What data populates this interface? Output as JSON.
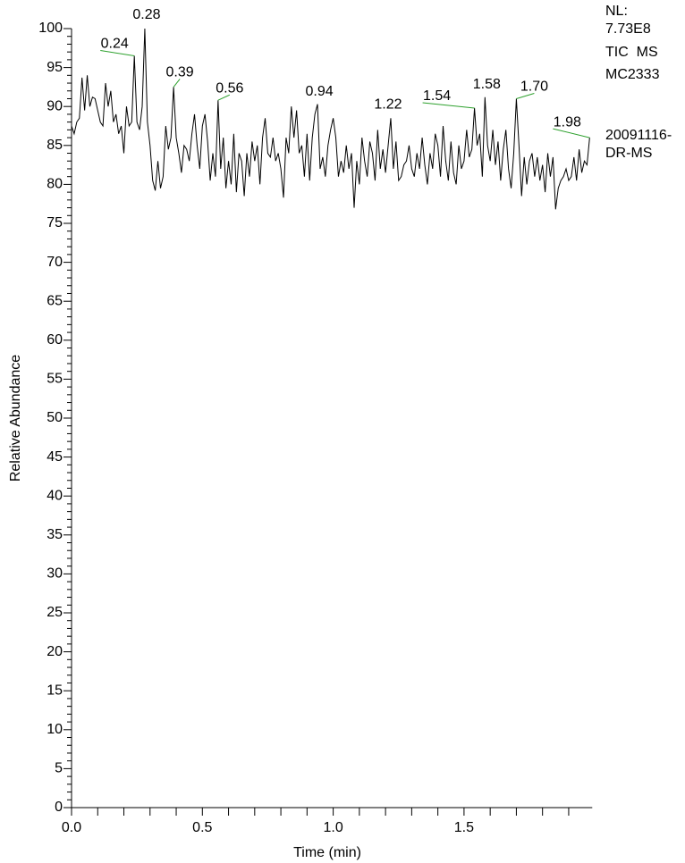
{
  "chart_data": {
    "type": "line",
    "xlabel": "Time (min)",
    "ylabel": "Relative Abundance",
    "annotations": [
      "NL:",
      "7.73E8",
      "TIC  MS",
      "MC2333",
      "20091116-",
      "DR-MS"
    ],
    "xlim": [
      0,
      1.99
    ],
    "ylim": [
      0,
      100
    ],
    "xticks": [
      {
        "value": 0,
        "label": "0.0"
      },
      0.5,
      {
        "value": 1,
        "label": "1.0"
      },
      1.5
    ],
    "yticks": [
      0,
      5,
      10,
      15,
      20,
      25,
      30,
      35,
      40,
      45,
      50,
      55,
      60,
      65,
      70,
      75,
      80,
      85,
      90,
      95,
      100
    ],
    "minor_per_major": 5,
    "color": "#000000",
    "peak_line_color": "#2ca02c",
    "x": [
      0.0,
      0.01,
      0.02,
      0.03,
      0.04,
      0.05,
      0.06,
      0.07,
      0.08,
      0.09,
      0.1,
      0.11,
      0.12,
      0.13,
      0.14,
      0.15,
      0.16,
      0.17,
      0.18,
      0.19,
      0.2,
      0.21,
      0.22,
      0.23,
      0.24,
      0.25,
      0.26,
      0.27,
      0.28,
      0.29,
      0.3,
      0.31,
      0.32,
      0.33,
      0.34,
      0.35,
      0.36,
      0.37,
      0.38,
      0.39,
      0.4,
      0.41,
      0.42,
      0.43,
      0.44,
      0.45,
      0.46,
      0.47,
      0.48,
      0.49,
      0.5,
      0.51,
      0.52,
      0.53,
      0.54,
      0.55,
      0.56,
      0.57,
      0.58,
      0.59,
      0.6,
      0.61,
      0.62,
      0.63,
      0.64,
      0.65,
      0.66,
      0.67,
      0.68,
      0.69,
      0.7,
      0.71,
      0.72,
      0.73,
      0.74,
      0.75,
      0.76,
      0.77,
      0.78,
      0.79,
      0.8,
      0.81,
      0.82,
      0.83,
      0.84,
      0.85,
      0.86,
      0.87,
      0.88,
      0.89,
      0.9,
      0.91,
      0.92,
      0.93,
      0.94,
      0.95,
      0.96,
      0.97,
      0.98,
      0.99,
      1.0,
      1.01,
      1.02,
      1.03,
      1.04,
      1.05,
      1.06,
      1.07,
      1.08,
      1.09,
      1.1,
      1.11,
      1.12,
      1.13,
      1.14,
      1.15,
      1.16,
      1.17,
      1.18,
      1.19,
      1.2,
      1.21,
      1.22,
      1.23,
      1.24,
      1.25,
      1.26,
      1.27,
      1.28,
      1.29,
      1.3,
      1.31,
      1.32,
      1.33,
      1.34,
      1.35,
      1.36,
      1.37,
      1.38,
      1.39,
      1.4,
      1.41,
      1.42,
      1.43,
      1.44,
      1.45,
      1.46,
      1.47,
      1.48,
      1.49,
      1.5,
      1.51,
      1.52,
      1.53,
      1.54,
      1.55,
      1.56,
      1.57,
      1.58,
      1.59,
      1.6,
      1.61,
      1.62,
      1.63,
      1.64,
      1.65,
      1.66,
      1.67,
      1.68,
      1.69,
      1.7,
      1.71,
      1.72,
      1.73,
      1.74,
      1.75,
      1.76,
      1.77,
      1.78,
      1.79,
      1.8,
      1.81,
      1.82,
      1.83,
      1.84,
      1.85,
      1.86,
      1.87,
      1.88,
      1.89,
      1.9,
      1.91,
      1.92,
      1.93,
      1.94,
      1.95,
      1.96,
      1.97,
      1.98
    ],
    "values": [
      87.5,
      86.5,
      88,
      88.5,
      93.7,
      89.5,
      94,
      90,
      91.2,
      91,
      89.5,
      88,
      87.5,
      93,
      90,
      92,
      88,
      89,
      86.5,
      87.5,
      84,
      90,
      87.5,
      88,
      96.5,
      88,
      87,
      90,
      100,
      88,
      85,
      80.5,
      79.2,
      83,
      79.5,
      81,
      87.5,
      84.5,
      86,
      92.5,
      86,
      84,
      81.5,
      85,
      84.5,
      83,
      86.5,
      89,
      85,
      82,
      87.5,
      89,
      85.5,
      80.5,
      84,
      81,
      90.8,
      82,
      86,
      79.5,
      83,
      80,
      86.5,
      79,
      84,
      83,
      78.5,
      84,
      81,
      85.5,
      83,
      85,
      80,
      86,
      88.5,
      84,
      83.5,
      86,
      83,
      84,
      82,
      78.3,
      86,
      84,
      90,
      86,
      89.5,
      84,
      85,
      81,
      86.5,
      80.5,
      86,
      89,
      90.3,
      82,
      83.5,
      81,
      85,
      87,
      88.5,
      86,
      81,
      83,
      81.5,
      85,
      82,
      84,
      77,
      83,
      80,
      86,
      83,
      81,
      85.5,
      84,
      80.5,
      87,
      82,
      84.5,
      81.5,
      85,
      88.5,
      82,
      85.5,
      80.5,
      81,
      82.5,
      83,
      85,
      82,
      81,
      84,
      82,
      86,
      82.5,
      80,
      84,
      82,
      86.5,
      85,
      81,
      87.5,
      83,
      80.5,
      85.5,
      81.5,
      80,
      85,
      82,
      83,
      87,
      83.5,
      84.5,
      89.8,
      85,
      86.5,
      81,
      91.2,
      85,
      83,
      87,
      82.5,
      85.5,
      80.5,
      84.5,
      87,
      82,
      79.5,
      84,
      91,
      85,
      78.5,
      83.5,
      80,
      83,
      84,
      81,
      83.5,
      80.5,
      82.5,
      79,
      84,
      81,
      83.5,
      76.8,
      79.5,
      80.5,
      81,
      82,
      80.5,
      81,
      83.5,
      80.5,
      84.5,
      81.5,
      83,
      82.5,
      86
    ],
    "peaks": [
      {
        "x": 0.24,
        "y": 96.5
      },
      {
        "x": 0.28,
        "y": 100
      },
      {
        "x": 0.39,
        "y": 92.5
      },
      {
        "x": 0.56,
        "y": 90.8
      },
      {
        "x": 0.94,
        "y": 90.3
      },
      {
        "x": 1.22,
        "y": 88.5
      },
      {
        "x": 1.54,
        "y": 89.8
      },
      {
        "x": 1.58,
        "y": 91.2
      },
      {
        "x": 1.7,
        "y": 91,
        "label": "1.70"
      },
      {
        "x": 1.98,
        "y": 86
      }
    ]
  }
}
